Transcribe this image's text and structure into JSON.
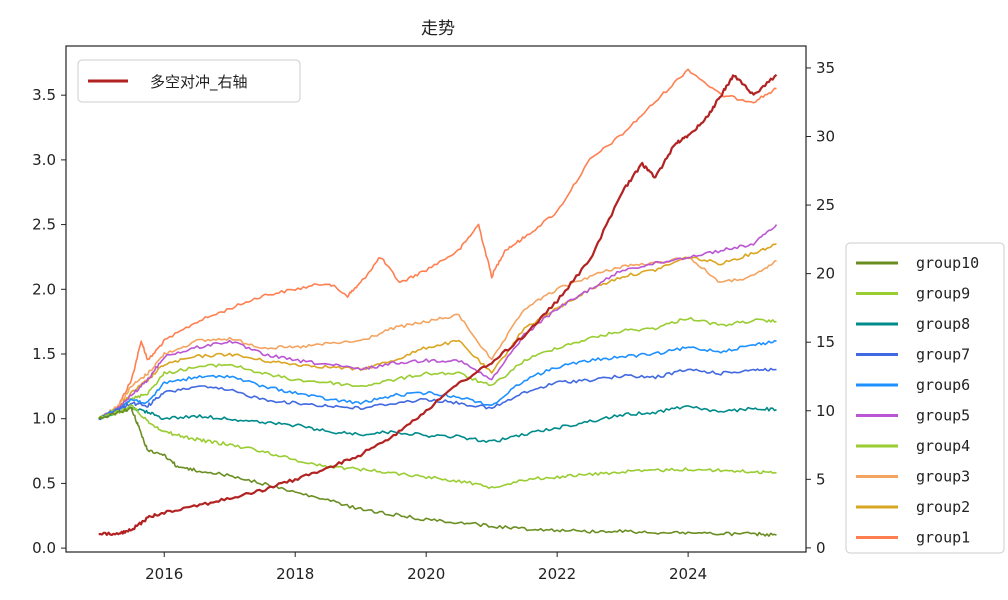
{
  "chart_data": {
    "type": "line",
    "title": "走势",
    "x_ticks": [
      "2016",
      "2018",
      "2020",
      "2022",
      "2024"
    ],
    "x_tick_values": [
      2016,
      2018,
      2020,
      2022,
      2024
    ],
    "xlim": [
      2014.5,
      2025.8
    ],
    "y_left_ticks": [
      "0.0",
      "0.5",
      "1.0",
      "1.5",
      "2.0",
      "2.5",
      "3.0",
      "3.5"
    ],
    "y_left_tick_values": [
      0.0,
      0.5,
      1.0,
      1.5,
      2.0,
      2.5,
      3.0,
      3.5
    ],
    "ylim_left": [
      -0.03,
      3.88
    ],
    "y_right_ticks": [
      "0",
      "5",
      "10",
      "15",
      "20",
      "25",
      "30",
      "35"
    ],
    "y_right_tick_values": [
      0,
      5,
      10,
      15,
      20,
      25,
      30,
      35
    ],
    "ylim_right": [
      -0.3,
      36.6
    ],
    "legend_top": {
      "position": "top-left",
      "entries": [
        "多空对冲_右轴"
      ]
    },
    "legend_right": {
      "position": "outside-right",
      "entries": [
        "group10",
        "group9",
        "group8",
        "group7",
        "group6",
        "group5",
        "group4",
        "group3",
        "group2",
        "group1"
      ]
    },
    "series": [
      {
        "name": "group10",
        "axis": "left",
        "color": "#6b8e23",
        "x": [
          2015.0,
          2015.3,
          2015.5,
          2015.6,
          2015.75,
          2016.0,
          2016.2,
          2016.5,
          2017.0,
          2017.5,
          2018.0,
          2018.5,
          2019.0,
          2019.5,
          2020.0,
          2020.5,
          2021.0,
          2021.5,
          2022.0,
          2022.5,
          2023.0,
          2023.5,
          2024.0,
          2024.5,
          2025.0,
          2025.35
        ],
        "y": [
          1.0,
          1.05,
          1.08,
          0.95,
          0.75,
          0.72,
          0.63,
          0.6,
          0.56,
          0.5,
          0.43,
          0.37,
          0.3,
          0.26,
          0.22,
          0.2,
          0.17,
          0.15,
          0.14,
          0.13,
          0.13,
          0.12,
          0.12,
          0.11,
          0.11,
          0.1
        ]
      },
      {
        "name": "group9",
        "axis": "left",
        "color": "#9acd32",
        "x": [
          2015.0,
          2015.3,
          2015.5,
          2015.75,
          2016.0,
          2016.3,
          2016.6,
          2017.0,
          2017.5,
          2018.0,
          2018.5,
          2019.0,
          2019.5,
          2020.0,
          2020.5,
          2021.0,
          2021.5,
          2022.0,
          2022.5,
          2023.0,
          2023.5,
          2024.0,
          2024.5,
          2025.0,
          2025.35
        ],
        "y": [
          1.0,
          1.05,
          1.1,
          0.98,
          0.9,
          0.86,
          0.83,
          0.8,
          0.75,
          0.68,
          0.63,
          0.61,
          0.58,
          0.55,
          0.52,
          0.47,
          0.53,
          0.55,
          0.57,
          0.59,
          0.6,
          0.61,
          0.6,
          0.59,
          0.58
        ]
      },
      {
        "name": "group8",
        "axis": "left",
        "color": "#008b8b",
        "x": [
          2015.0,
          2015.3,
          2015.5,
          2015.75,
          2016.0,
          2016.5,
          2017.0,
          2017.5,
          2018.0,
          2018.5,
          2019.0,
          2019.5,
          2020.0,
          2020.5,
          2021.0,
          2021.5,
          2022.0,
          2022.5,
          2023.0,
          2023.5,
          2024.0,
          2024.5,
          2025.0,
          2025.35
        ],
        "y": [
          1.0,
          1.05,
          1.08,
          1.05,
          1.0,
          1.02,
          1.0,
          0.97,
          0.95,
          0.9,
          0.88,
          0.9,
          0.87,
          0.86,
          0.82,
          0.88,
          0.93,
          0.98,
          1.03,
          1.05,
          1.1,
          1.05,
          1.08,
          1.07
        ]
      },
      {
        "name": "group7",
        "axis": "left",
        "color": "#4169e1",
        "x": [
          2015.0,
          2015.3,
          2015.5,
          2015.75,
          2016.0,
          2016.5,
          2017.0,
          2017.5,
          2018.0,
          2018.5,
          2019.0,
          2019.5,
          2020.0,
          2020.5,
          2021.0,
          2021.5,
          2022.0,
          2022.5,
          2023.0,
          2023.5,
          2024.0,
          2024.5,
          2025.0,
          2025.35
        ],
        "y": [
          1.0,
          1.07,
          1.12,
          1.1,
          1.2,
          1.25,
          1.22,
          1.15,
          1.12,
          1.1,
          1.08,
          1.12,
          1.15,
          1.12,
          1.08,
          1.2,
          1.28,
          1.3,
          1.33,
          1.32,
          1.38,
          1.35,
          1.38,
          1.38
        ]
      },
      {
        "name": "group6",
        "axis": "left",
        "color": "#1e90ff",
        "x": [
          2015.0,
          2015.3,
          2015.5,
          2015.75,
          2016.0,
          2016.5,
          2017.0,
          2017.5,
          2018.0,
          2018.5,
          2019.0,
          2019.5,
          2020.0,
          2020.5,
          2021.0,
          2021.5,
          2022.0,
          2022.5,
          2023.0,
          2023.5,
          2024.0,
          2024.5,
          2025.0,
          2025.35
        ],
        "y": [
          1.0,
          1.08,
          1.15,
          1.12,
          1.28,
          1.32,
          1.33,
          1.25,
          1.2,
          1.15,
          1.12,
          1.18,
          1.2,
          1.17,
          1.1,
          1.3,
          1.4,
          1.45,
          1.48,
          1.5,
          1.55,
          1.52,
          1.57,
          1.6
        ]
      },
      {
        "name": "group5",
        "axis": "left",
        "color": "#ba55d3",
        "x": [
          2015.0,
          2015.3,
          2015.5,
          2015.75,
          2016.0,
          2016.5,
          2017.0,
          2017.5,
          2018.0,
          2018.5,
          2019.0,
          2019.5,
          2020.0,
          2020.5,
          2021.0,
          2021.5,
          2022.0,
          2022.5,
          2023.0,
          2023.5,
          2024.0,
          2024.5,
          2025.0,
          2025.35
        ],
        "y": [
          1.0,
          1.08,
          1.18,
          1.3,
          1.48,
          1.55,
          1.6,
          1.5,
          1.45,
          1.42,
          1.38,
          1.43,
          1.45,
          1.45,
          1.3,
          1.65,
          1.85,
          2.0,
          2.15,
          2.2,
          2.25,
          2.3,
          2.35,
          2.5
        ]
      },
      {
        "name": "group4",
        "axis": "left",
        "color": "#9acd32",
        "x": [
          2015.0,
          2015.3,
          2015.5,
          2015.75,
          2016.0,
          2016.5,
          2017.0,
          2017.5,
          2018.0,
          2018.5,
          2019.0,
          2019.5,
          2020.0,
          2020.5,
          2021.0,
          2021.5,
          2022.0,
          2022.5,
          2023.0,
          2023.5,
          2024.0,
          2024.5,
          2025.0,
          2025.35
        ],
        "y": [
          1.0,
          1.08,
          1.15,
          1.2,
          1.35,
          1.4,
          1.42,
          1.35,
          1.3,
          1.28,
          1.25,
          1.3,
          1.35,
          1.35,
          1.25,
          1.45,
          1.55,
          1.62,
          1.68,
          1.7,
          1.78,
          1.72,
          1.76,
          1.75
        ]
      },
      {
        "name": "group3",
        "axis": "left",
        "color": "#f4a460",
        "x": [
          2015.0,
          2015.3,
          2015.5,
          2015.75,
          2016.0,
          2016.5,
          2017.0,
          2017.5,
          2018.0,
          2018.5,
          2019.0,
          2019.5,
          2020.0,
          2020.5,
          2021.0,
          2021.5,
          2022.0,
          2022.5,
          2023.0,
          2023.5,
          2024.0,
          2024.5,
          2025.0,
          2025.35
        ],
        "y": [
          1.0,
          1.1,
          1.25,
          1.35,
          1.5,
          1.6,
          1.62,
          1.55,
          1.55,
          1.58,
          1.6,
          1.7,
          1.75,
          1.8,
          1.45,
          1.85,
          2.0,
          2.1,
          2.18,
          2.2,
          2.25,
          2.05,
          2.1,
          2.22
        ]
      },
      {
        "name": "group2",
        "axis": "left",
        "color": "#daa520",
        "x": [
          2015.0,
          2015.3,
          2015.5,
          2015.75,
          2016.0,
          2016.5,
          2017.0,
          2017.5,
          2018.0,
          2018.5,
          2019.0,
          2019.5,
          2020.0,
          2020.5,
          2021.0,
          2021.5,
          2022.0,
          2022.5,
          2023.0,
          2023.5,
          2024.0,
          2024.5,
          2025.0,
          2025.35
        ],
        "y": [
          1.0,
          1.08,
          1.2,
          1.3,
          1.42,
          1.48,
          1.5,
          1.45,
          1.42,
          1.4,
          1.38,
          1.45,
          1.55,
          1.6,
          1.35,
          1.7,
          1.85,
          2.0,
          2.1,
          2.15,
          2.25,
          2.2,
          2.28,
          2.35
        ]
      },
      {
        "name": "group1",
        "axis": "left",
        "color": "#ff7f50",
        "x": [
          2015.0,
          2015.3,
          2015.5,
          2015.65,
          2015.75,
          2016.0,
          2016.5,
          2017.0,
          2017.5,
          2018.0,
          2018.5,
          2018.8,
          2019.0,
          2019.3,
          2019.6,
          2020.0,
          2020.5,
          2020.8,
          2021.0,
          2021.2,
          2021.5,
          2022.0,
          2022.5,
          2023.0,
          2023.5,
          2024.0,
          2024.5,
          2025.0,
          2025.35
        ],
        "y": [
          1.0,
          1.1,
          1.3,
          1.6,
          1.45,
          1.6,
          1.75,
          1.85,
          1.95,
          2.0,
          2.05,
          1.95,
          2.05,
          2.25,
          2.05,
          2.15,
          2.3,
          2.5,
          2.1,
          2.3,
          2.4,
          2.6,
          3.0,
          3.2,
          3.45,
          3.7,
          3.5,
          3.45,
          3.55
        ]
      },
      {
        "name": "多空对冲_右轴",
        "axis": "right",
        "color": "#b22222",
        "x": [
          2015.0,
          2015.3,
          2015.5,
          2015.75,
          2016.0,
          2016.5,
          2017.0,
          2017.5,
          2018.0,
          2018.5,
          2019.0,
          2019.5,
          2020.0,
          2020.5,
          2021.0,
          2021.5,
          2022.0,
          2022.5,
          2023.0,
          2023.3,
          2023.5,
          2023.8,
          2024.0,
          2024.3,
          2024.5,
          2024.7,
          2025.0,
          2025.35
        ],
        "y": [
          1.0,
          1.0,
          1.3,
          2.2,
          2.6,
          3.1,
          3.6,
          4.2,
          5.0,
          5.8,
          6.8,
          8.2,
          10.0,
          12.0,
          13.5,
          15.5,
          18.0,
          21.0,
          26.0,
          28.0,
          27.0,
          29.5,
          30.0,
          31.5,
          33.0,
          34.5,
          33.0,
          34.5
        ]
      }
    ]
  }
}
